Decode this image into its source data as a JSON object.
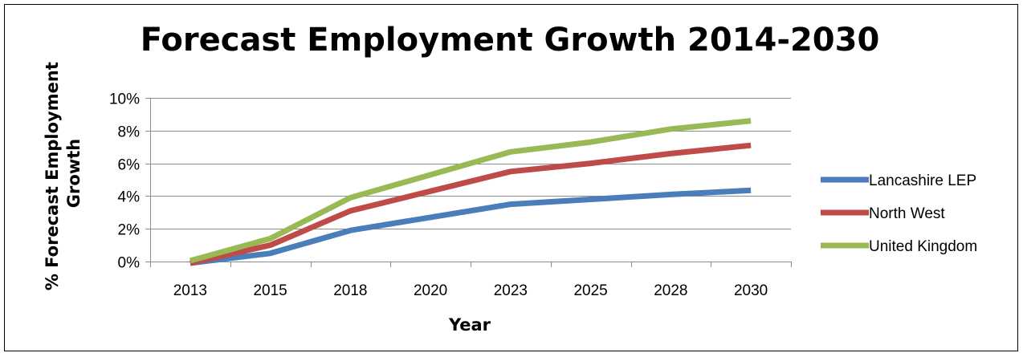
{
  "chart_data": {
    "type": "line",
    "title": "Forecast Employment Growth 2014-2030",
    "xlabel": "Year",
    "ylabel": "% Forecast Employment Growth",
    "ylabel_lines": [
      "% Forecast Employment",
      "Growth"
    ],
    "categories": [
      "2013",
      "2015",
      "2018",
      "2020",
      "2023",
      "2025",
      "2028",
      "2030"
    ],
    "x_values": [
      2013,
      2015,
      2018,
      2020,
      2023,
      2025,
      2028,
      2030
    ],
    "ylim": [
      0,
      10
    ],
    "yticks": [
      0,
      2,
      4,
      6,
      8,
      10
    ],
    "ytick_labels": [
      "0%",
      "2%",
      "4%",
      "6%",
      "8%",
      "10%"
    ],
    "grid": true,
    "legend_position": "right",
    "series": [
      {
        "name": "Lancashire LEP",
        "color": "#4a7ebb",
        "points": [
          [
            2013,
            -0.1
          ],
          [
            2015,
            0.5
          ],
          [
            2018,
            1.9
          ],
          [
            2020,
            2.7
          ],
          [
            2023,
            3.5
          ],
          [
            2025,
            3.8
          ],
          [
            2028,
            4.1
          ],
          [
            2030,
            4.35
          ]
        ]
      },
      {
        "name": "North West",
        "color": "#be4b48",
        "points": [
          [
            2013,
            -0.1
          ],
          [
            2015,
            1.0
          ],
          [
            2018,
            3.1
          ],
          [
            2020,
            4.3
          ],
          [
            2023,
            5.5
          ],
          [
            2025,
            6.0
          ],
          [
            2028,
            6.6
          ],
          [
            2030,
            7.1
          ]
        ]
      },
      {
        "name": "United Kingdom",
        "color": "#98b954",
        "points": [
          [
            2013,
            0.05
          ],
          [
            2015,
            1.4
          ],
          [
            2018,
            3.9
          ],
          [
            2020,
            5.3
          ],
          [
            2023,
            6.7
          ],
          [
            2025,
            7.3
          ],
          [
            2028,
            8.1
          ],
          [
            2030,
            8.6
          ]
        ]
      }
    ]
  }
}
